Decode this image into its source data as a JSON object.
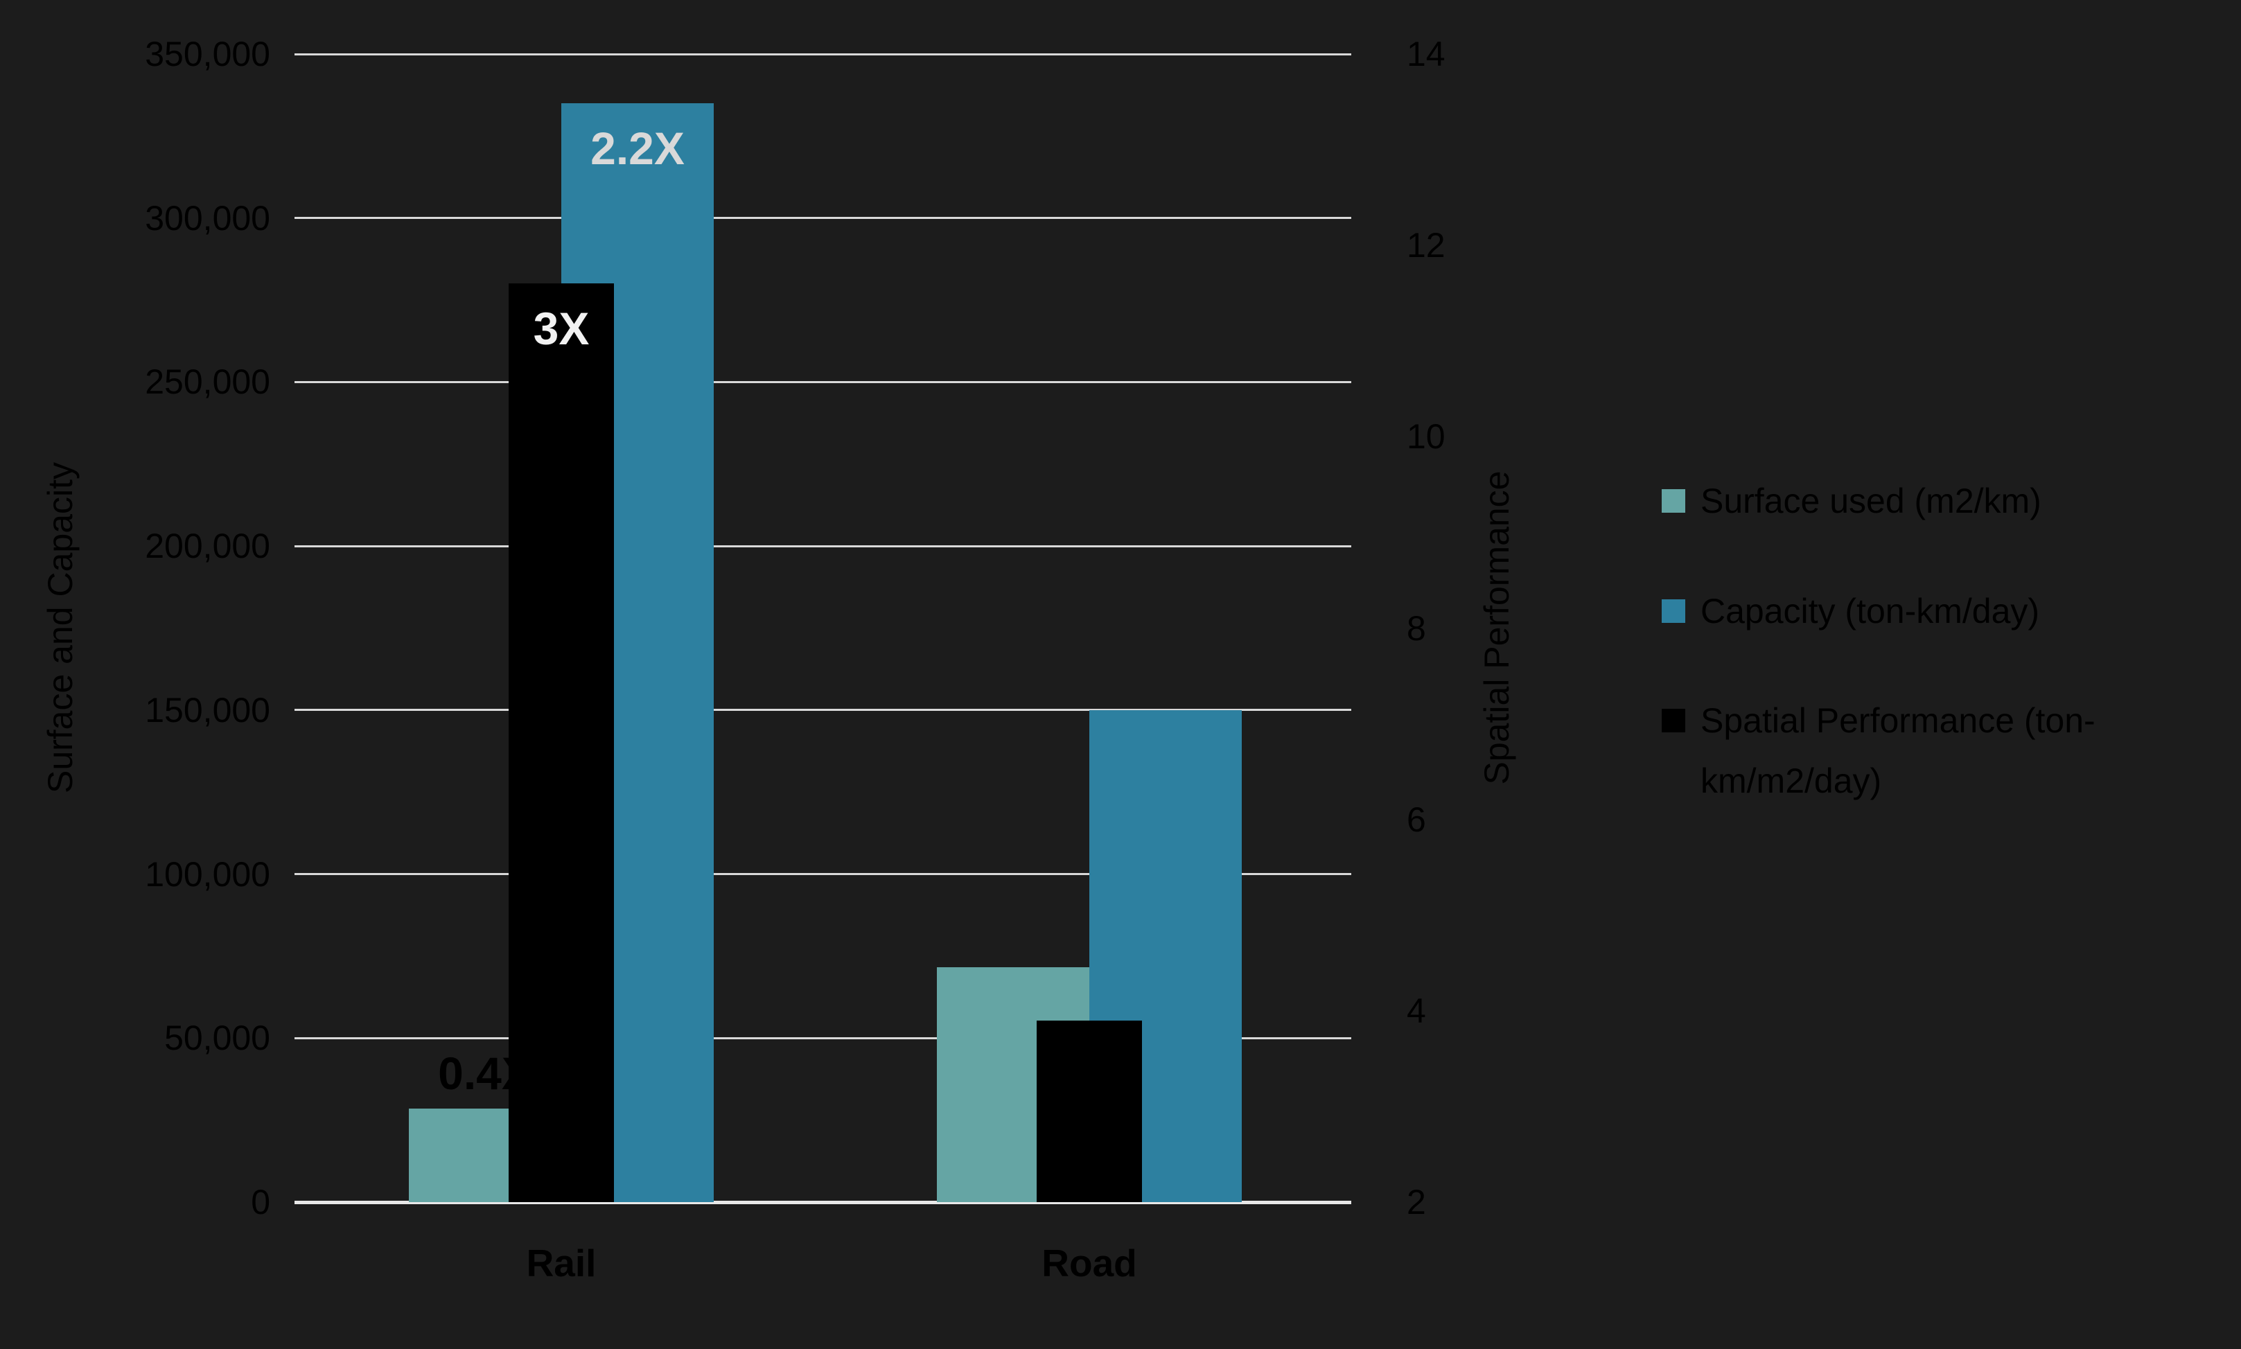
{
  "chart_data": {
    "type": "bar",
    "title": "",
    "categories": [
      "Rail",
      "Road"
    ],
    "series": [
      {
        "key": "surface",
        "name": "Surface used (m2/km)",
        "axis": "left",
        "color": "#65A5A4",
        "values": [
          28500,
          71500
        ]
      },
      {
        "key": "capacity",
        "name": "Capacity (ton-km/day)",
        "axis": "left",
        "color": "#2D80A0",
        "values": [
          335000,
          150000
        ]
      },
      {
        "key": "spatial",
        "name": "Spatial Performance (ton-km/m2/day)",
        "axis": "right",
        "color": "#000000",
        "values": [
          11.6,
          3.9
        ]
      }
    ],
    "data_labels": [
      {
        "text": "0.4X",
        "series": 0,
        "category": 0,
        "color": "#000000",
        "position": "above"
      },
      {
        "text": "2.2X",
        "series": 1,
        "category": 0,
        "color": "#D9D9D9",
        "position": "inside-top"
      },
      {
        "text": "3X",
        "series": 2,
        "category": 0,
        "color": "#F2F2F2",
        "position": "inside-top"
      }
    ],
    "left_axis": {
      "title": "Surface and Capacity",
      "min": 0,
      "max": 350000,
      "step": 50000,
      "tick_labels": [
        "0",
        "50,000",
        "100,000",
        "150,000",
        "200,000",
        "250,000",
        "300,000",
        "350,000"
      ]
    },
    "right_axis": {
      "title": "Spatial Performance",
      "min": 2,
      "max": 14,
      "step": 2,
      "tick_labels": [
        "2",
        "4",
        "6",
        "8",
        "10",
        "12",
        "14"
      ]
    },
    "grid": true,
    "legend_position": "right",
    "colors": {
      "background": "#1C1C1C",
      "gridline": "#D9D9D9",
      "baseline": "#E8E8E8",
      "axis_text": "#000000"
    }
  }
}
